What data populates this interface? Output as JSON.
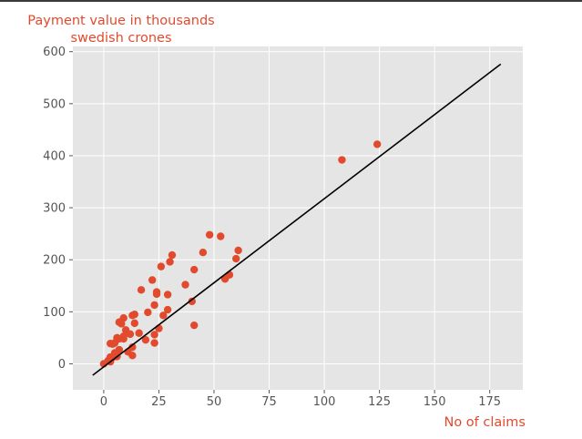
{
  "chart_data": {
    "type": "scatter",
    "title": "",
    "xlabel": "No of claims",
    "ylabel": "Payment value in thousands swedish crones",
    "xlim": [
      -14,
      190
    ],
    "ylim": [
      -50,
      610
    ],
    "xticks": [
      0,
      25,
      50,
      75,
      100,
      125,
      150,
      175
    ],
    "yticks": [
      0,
      100,
      200,
      300,
      400,
      500,
      600
    ],
    "grid": true,
    "colors": {
      "points": "#e24a2e",
      "line": "#000000",
      "background": "#e5e5e5",
      "grid": "#ffffff"
    },
    "points": [
      {
        "x": 108,
        "y": 392
      },
      {
        "x": 124,
        "y": 422
      },
      {
        "x": 61,
        "y": 218
      },
      {
        "x": 60,
        "y": 202
      },
      {
        "x": 57,
        "y": 171
      },
      {
        "x": 55,
        "y": 163
      },
      {
        "x": 53,
        "y": 245
      },
      {
        "x": 48,
        "y": 248
      },
      {
        "x": 45,
        "y": 214
      },
      {
        "x": 41,
        "y": 181
      },
      {
        "x": 41,
        "y": 74
      },
      {
        "x": 40,
        "y": 120
      },
      {
        "x": 37,
        "y": 152
      },
      {
        "x": 31,
        "y": 209
      },
      {
        "x": 30,
        "y": 196
      },
      {
        "x": 29,
        "y": 133
      },
      {
        "x": 29,
        "y": 104
      },
      {
        "x": 27,
        "y": 93
      },
      {
        "x": 26,
        "y": 187
      },
      {
        "x": 25,
        "y": 68
      },
      {
        "x": 24,
        "y": 134
      },
      {
        "x": 24,
        "y": 138
      },
      {
        "x": 23,
        "y": 113
      },
      {
        "x": 23,
        "y": 56
      },
      {
        "x": 23,
        "y": 40
      },
      {
        "x": 22,
        "y": 161
      },
      {
        "x": 20,
        "y": 99
      },
      {
        "x": 19,
        "y": 46
      },
      {
        "x": 17,
        "y": 142
      },
      {
        "x": 16,
        "y": 59
      },
      {
        "x": 14,
        "y": 95
      },
      {
        "x": 14,
        "y": 78
      },
      {
        "x": 13,
        "y": 93
      },
      {
        "x": 13,
        "y": 16
      },
      {
        "x": 13,
        "y": 32
      },
      {
        "x": 12,
        "y": 57
      },
      {
        "x": 11,
        "y": 23
      },
      {
        "x": 10,
        "y": 65
      },
      {
        "x": 9,
        "y": 88
      },
      {
        "x": 9,
        "y": 53
      },
      {
        "x": 9,
        "y": 48
      },
      {
        "x": 8,
        "y": 77
      },
      {
        "x": 7,
        "y": 80
      },
      {
        "x": 7,
        "y": 48
      },
      {
        "x": 7,
        "y": 27
      },
      {
        "x": 6,
        "y": 50
      },
      {
        "x": 6,
        "y": 14
      },
      {
        "x": 5,
        "y": 40
      },
      {
        "x": 5,
        "y": 21
      },
      {
        "x": 4,
        "y": 38
      },
      {
        "x": 4,
        "y": 12
      },
      {
        "x": 3,
        "y": 39
      },
      {
        "x": 3,
        "y": 13
      },
      {
        "x": 3,
        "y": 4
      },
      {
        "x": 2,
        "y": 6
      },
      {
        "x": 0,
        "y": 0
      }
    ],
    "fit_line": {
      "x": [
        -5,
        180
      ],
      "y": [
        -22,
        576
      ]
    }
  }
}
